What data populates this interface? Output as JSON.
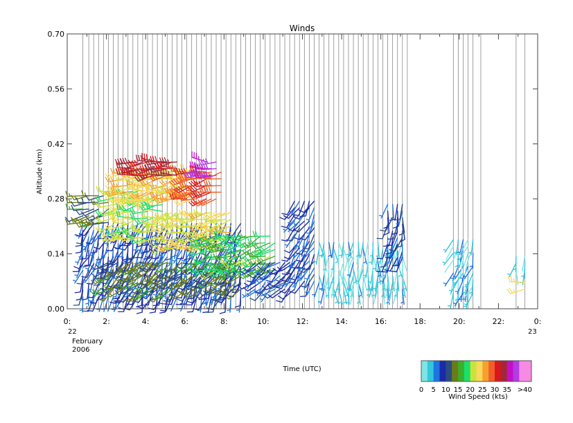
{
  "chart_data": {
    "type": "wind_barbs",
    "title": "Winds",
    "ylabel": "Altitude (km)",
    "xlabel": "Time (UTC)",
    "ylim": [
      0.0,
      0.7
    ],
    "xlim_hours": [
      0,
      24
    ],
    "y_ticks": [
      {
        "value": 0.0,
        "label": "0.00"
      },
      {
        "value": 0.14,
        "label": "0.14"
      },
      {
        "value": 0.28,
        "label": "0.28"
      },
      {
        "value": 0.42,
        "label": "0.42"
      },
      {
        "value": 0.56,
        "label": "0.56"
      },
      {
        "value": 0.7,
        "label": "0.70"
      }
    ],
    "x_ticks": [
      {
        "hour": 0,
        "label": "0:"
      },
      {
        "hour": 2,
        "label": "2:"
      },
      {
        "hour": 4,
        "label": "4:"
      },
      {
        "hour": 6,
        "label": "6:"
      },
      {
        "hour": 8,
        "label": "8:"
      },
      {
        "hour": 10,
        "label": "10:"
      },
      {
        "hour": 12,
        "label": "12:"
      },
      {
        "hour": 14,
        "label": "14:"
      },
      {
        "hour": 16,
        "label": "16:"
      },
      {
        "hour": 18,
        "label": "18:"
      },
      {
        "hour": 20,
        "label": "20:"
      },
      {
        "hour": 22,
        "label": "22:"
      },
      {
        "hour": 24,
        "label": "0:"
      }
    ],
    "date_start": {
      "day": "22",
      "month": "February",
      "year": "2006"
    },
    "date_end": {
      "day": "23"
    },
    "profile_times_hours": [
      0.8,
      1.1,
      1.35,
      1.6,
      1.85,
      2.1,
      2.35,
      2.6,
      2.85,
      3.1,
      3.35,
      3.6,
      3.85,
      4.1,
      4.35,
      4.6,
      4.85,
      5.1,
      5.35,
      5.6,
      5.85,
      6.1,
      6.35,
      6.6,
      6.85,
      7.1,
      7.35,
      7.6,
      7.85,
      8.1,
      8.35,
      8.6,
      8.85,
      9.1,
      9.35,
      9.6,
      9.85,
      10.1,
      10.35,
      10.6,
      10.85,
      11.1,
      11.35,
      11.6,
      11.85,
      12.1,
      12.35,
      12.6,
      12.85,
      13.1,
      13.35,
      13.6,
      13.85,
      14.1,
      14.35,
      14.6,
      14.85,
      15.1,
      15.35,
      15.6,
      15.85,
      16.1,
      16.35,
      16.6,
      16.85,
      17.1,
      17.35,
      19.7,
      19.95,
      20.2,
      20.45,
      20.7,
      21.1,
      22.9,
      23.35
    ],
    "speed_ranges": [
      {
        "min": 0,
        "max": 2.5,
        "color": "#7fe5e5"
      },
      {
        "min": 2.5,
        "max": 5,
        "color": "#33c7dc"
      },
      {
        "min": 5,
        "max": 7.5,
        "color": "#1e74e0"
      },
      {
        "min": 7.5,
        "max": 10,
        "color": "#1a2aa8"
      },
      {
        "min": 10,
        "max": 12.5,
        "color": "#2a4d80"
      },
      {
        "min": 12.5,
        "max": 15,
        "color": "#6b7c16"
      },
      {
        "min": 15,
        "max": 17.5,
        "color": "#3cae2b"
      },
      {
        "min": 17.5,
        "max": 20,
        "color": "#19e06a"
      },
      {
        "min": 20,
        "max": 22.5,
        "color": "#c9e33c"
      },
      {
        "min": 22.5,
        "max": 25,
        "color": "#f7d95b"
      },
      {
        "min": 25,
        "max": 27.5,
        "color": "#f7a02e"
      },
      {
        "min": 27.5,
        "max": 30,
        "color": "#f25e2a"
      },
      {
        "min": 30,
        "max": 32.5,
        "color": "#d8181e"
      },
      {
        "min": 32.5,
        "max": 35,
        "color": "#a02838"
      },
      {
        "min": 35,
        "max": 37.5,
        "color": "#c40fc4"
      },
      {
        "min": 37.5,
        "max": 40,
        "color": "#b23ce6"
      },
      {
        "min": 40,
        "max": 45,
        "color": "#f78ae3"
      }
    ],
    "colorbar": {
      "label": "Wind Speed (kts)",
      "tick_labels": [
        {
          "value": 0,
          "label": "0"
        },
        {
          "value": 5,
          "label": "5"
        },
        {
          "value": 10,
          "label": "10"
        },
        {
          "value": 15,
          "label": "15"
        },
        {
          "value": 20,
          "label": "20"
        },
        {
          "value": 25,
          "label": "25"
        },
        {
          "value": 30,
          "label": "30"
        },
        {
          "value": 35,
          "label": "35"
        },
        {
          "value": 40,
          "label": ">40"
        }
      ]
    },
    "wind_regions": [
      {
        "t0": 0.8,
        "t1": 9.0,
        "z0": 0.03,
        "z1": 0.22,
        "speed": 8,
        "dir": 200
      },
      {
        "t0": 2.0,
        "t1": 9.0,
        "z0": 0.05,
        "z1": 0.12,
        "speed": 13,
        "dir": 230
      },
      {
        "t0": 0.8,
        "t1": 2.3,
        "z0": 0.22,
        "z1": 0.29,
        "speed": 13,
        "dir": 250
      },
      {
        "t0": 2.3,
        "t1": 5.0,
        "z0": 0.18,
        "z1": 0.3,
        "speed": 21,
        "dir": 260
      },
      {
        "t0": 5.0,
        "t1": 8.4,
        "z0": 0.16,
        "z1": 0.26,
        "speed": 23,
        "dir": 255
      },
      {
        "t0": 7.0,
        "t1": 10.6,
        "z0": 0.1,
        "z1": 0.2,
        "speed": 18,
        "dir": 250
      },
      {
        "t0": 2.7,
        "t1": 6.8,
        "z0": 0.28,
        "z1": 0.35,
        "speed": 24,
        "dir": 260
      },
      {
        "t0": 3.3,
        "t1": 5.6,
        "z0": 0.34,
        "z1": 0.39,
        "speed": 32,
        "dir": 265
      },
      {
        "t0": 6.0,
        "t1": 8.0,
        "z0": 0.28,
        "z1": 0.35,
        "speed": 30,
        "dir": 260
      },
      {
        "t0": 6.8,
        "t1": 7.6,
        "z0": 0.34,
        "z1": 0.39,
        "speed": 37,
        "dir": 270
      },
      {
        "t0": 9.5,
        "t1": 11.6,
        "z0": 0.05,
        "z1": 0.12,
        "speed": 8,
        "dir": 230
      },
      {
        "t0": 11.6,
        "t1": 12.7,
        "z0": 0.07,
        "z1": 0.29,
        "speed": 8,
        "dir": 210
      },
      {
        "t0": 12.7,
        "t1": 17.3,
        "z0": 0.05,
        "z1": 0.17,
        "speed": 3,
        "dir": 180
      },
      {
        "t0": 16.2,
        "t1": 17.3,
        "z0": 0.13,
        "z1": 0.27,
        "speed": 9,
        "dir": 190
      },
      {
        "t0": 19.7,
        "t1": 21.0,
        "z0": 0.04,
        "z1": 0.19,
        "speed": 4,
        "dir": 200
      },
      {
        "t0": 22.9,
        "t1": 23.4,
        "z0": 0.1,
        "z1": 0.15,
        "speed": 3,
        "dir": 190
      },
      {
        "t0": 23.3,
        "t1": 23.4,
        "z0": 0.05,
        "z1": 0.07,
        "speed": 25,
        "dir": 270
      }
    ]
  }
}
